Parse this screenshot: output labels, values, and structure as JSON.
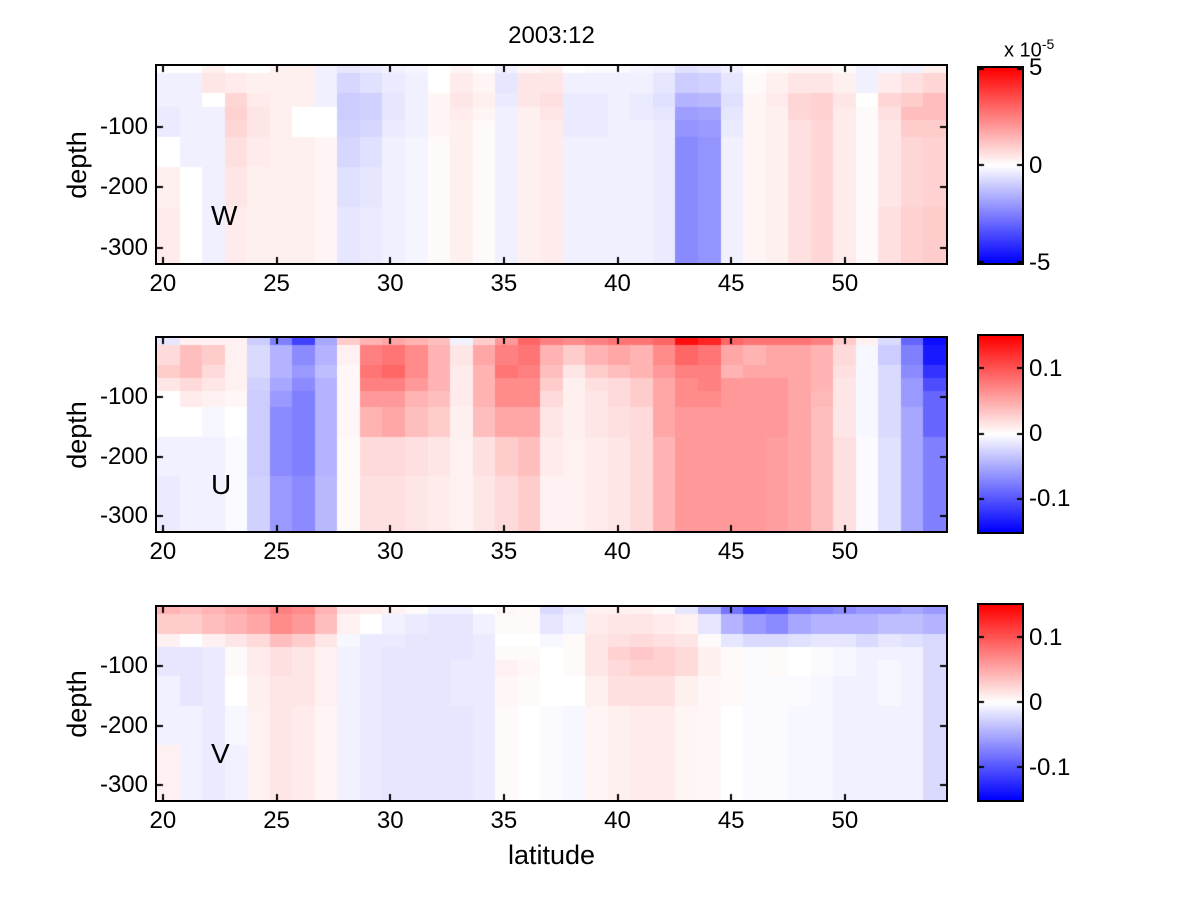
{
  "title": "2003:12",
  "xlabel": "latitude",
  "ylabel": "depth",
  "colors": {
    "positive_max": "#ff0000",
    "zero": "#ffffff",
    "negative_max": "#0000ff",
    "axis": "#000000",
    "background": "#ffffff"
  },
  "x_tick_labels": [
    "20",
    "25",
    "30",
    "35",
    "40",
    "45",
    "50"
  ],
  "x_tick_values": [
    20,
    25,
    30,
    35,
    40,
    45,
    50
  ],
  "y_tick_labels": [
    "-100",
    "-200",
    "-300"
  ],
  "y_tick_values": [
    -100,
    -200,
    -300
  ],
  "chart_data": [
    {
      "type": "heatmap",
      "panel_label": "W",
      "title": "2003:12",
      "xlabel": "",
      "ylabel": "depth",
      "x_range": [
        19.74,
        54.45
      ],
      "x_start": 20,
      "x_step": 1,
      "n_cols": 35,
      "y_edges_m": [
        0,
        -12,
        -45,
        -68,
        -89,
        -117,
        -167,
        -233,
        -325
      ],
      "depth_range": [
        0,
        -325
      ],
      "units": "1e-5 m/s",
      "cmax": 5,
      "orientation": "values[col][row], col = latitude 20..54, row = surface..deep",
      "colorbar": {
        "tick_labels": [
          "5",
          "0",
          "-5"
        ],
        "tick_values": [
          5,
          0,
          -5
        ],
        "range": [
          -5,
          5
        ],
        "exponent_label": "x 10",
        "exponent": "-5"
      },
      "values": [
        [
          0,
          -0.3,
          -0.3,
          -0.4,
          -0.4,
          0,
          0.3,
          0.4
        ],
        [
          0,
          -0.3,
          -0.3,
          -0.3,
          -0.3,
          -0.3,
          0,
          0
        ],
        [
          0.3,
          0.5,
          0,
          -0.3,
          -0.3,
          -0.3,
          -0.3,
          -0.3
        ],
        [
          0,
          0.4,
          0.8,
          0.9,
          0.8,
          0.6,
          0.5,
          0.4
        ],
        [
          0,
          0.3,
          0.4,
          0.5,
          0.5,
          0.4,
          0.3,
          0.3
        ],
        [
          0.3,
          0.3,
          0.3,
          0.3,
          0.3,
          0.3,
          0.3,
          0.3
        ],
        [
          0.3,
          0.3,
          0.3,
          0,
          0,
          0.3,
          0.3,
          0.3
        ],
        [
          -0.3,
          -0.3,
          -0.3,
          0,
          0,
          0.2,
          0.2,
          0.2
        ],
        [
          -0.5,
          -0.8,
          -1,
          -1,
          -0.9,
          -0.8,
          -0.6,
          -0.5
        ],
        [
          -0.4,
          -0.6,
          -0.9,
          -0.9,
          -0.8,
          -0.6,
          -0.5,
          -0.4
        ],
        [
          -0.3,
          -0.4,
          -0.5,
          -0.5,
          -0.4,
          -0.3,
          -0.3,
          -0.3
        ],
        [
          -0.2,
          -0.3,
          -0.3,
          -0.3,
          -0.3,
          -0.2,
          -0.2,
          -0.2
        ],
        [
          0,
          0,
          0.2,
          0.2,
          0.2,
          0.1,
          0.1,
          0.1
        ],
        [
          0.2,
          0.4,
          0.5,
          0.4,
          0.3,
          0.3,
          0.3,
          0.3
        ],
        [
          0,
          0.2,
          0.3,
          0.2,
          0.1,
          0.1,
          0.1,
          0.1
        ],
        [
          -0.3,
          -0.5,
          -0.4,
          -0.3,
          -0.3,
          -0.3,
          -0.3,
          -0.3
        ],
        [
          0.2,
          0.5,
          0.5,
          0.3,
          0.3,
          0.3,
          0.3,
          0.3
        ],
        [
          0.3,
          0.5,
          0.6,
          0.5,
          0.4,
          0.4,
          0.4,
          0.4
        ],
        [
          0,
          -0.3,
          -0.4,
          -0.4,
          -0.4,
          -0.3,
          -0.3,
          -0.3
        ],
        [
          -0.1,
          -0.3,
          -0.4,
          -0.4,
          -0.4,
          -0.3,
          -0.3,
          -0.3
        ],
        [
          -0.1,
          -0.3,
          -0.3,
          -0.3,
          -0.3,
          -0.3,
          -0.3,
          -0.3
        ],
        [
          -0.2,
          -0.3,
          -0.4,
          -0.4,
          -0.3,
          -0.3,
          -0.3,
          -0.3
        ],
        [
          -0.3,
          -0.5,
          -0.6,
          -0.5,
          -0.4,
          -0.4,
          -0.4,
          -0.4
        ],
        [
          -0.6,
          -1,
          -1.5,
          -1.9,
          -2.1,
          -2.3,
          -2.3,
          -2.3
        ],
        [
          -0.5,
          -0.9,
          -1.4,
          -1.8,
          -2,
          -2.1,
          -2.1,
          -2.1
        ],
        [
          -0.3,
          -0.5,
          -0.6,
          -0.5,
          -0.4,
          -0.3,
          -0.3,
          -0.3
        ],
        [
          0,
          0.1,
          0.2,
          0.2,
          0.2,
          0.2,
          0.2,
          0.2
        ],
        [
          0.1,
          0.3,
          0.4,
          0.3,
          0.3,
          0.3,
          0.3,
          0.3
        ],
        [
          0.2,
          0.5,
          0.8,
          0.8,
          0.6,
          0.6,
          0.6,
          0.6
        ],
        [
          0.2,
          0.5,
          0.9,
          0.9,
          0.8,
          0.8,
          0.8,
          0.8
        ],
        [
          0.1,
          0.3,
          0.5,
          0.4,
          0.4,
          0.4,
          0.4,
          0.4
        ],
        [
          -0.3,
          -0.3,
          0,
          0.1,
          0.1,
          0.1,
          0.1,
          0.1
        ],
        [
          -0.2,
          0.4,
          0.8,
          0.6,
          0.5,
          0.5,
          0.5,
          0.6
        ],
        [
          -0.3,
          0.6,
          1,
          1.3,
          1,
          0.8,
          0.8,
          0.9
        ],
        [
          0.3,
          0.8,
          1.3,
          1.3,
          1,
          0.9,
          0.9,
          1
        ]
      ]
    },
    {
      "type": "heatmap",
      "panel_label": "U",
      "xlabel": "",
      "ylabel": "depth",
      "x_range": [
        19.74,
        54.45
      ],
      "x_start": 20,
      "x_step": 1,
      "n_cols": 35,
      "y_edges_m": [
        0,
        -12,
        -45,
        -68,
        -89,
        -117,
        -167,
        -233,
        -325
      ],
      "depth_range": [
        0,
        -325
      ],
      "units": "m/s",
      "cmax": 0.15,
      "orientation": "values[col][row], col = latitude 20..54, row = surface..deep",
      "colorbar": {
        "tick_labels": [
          "0.1",
          "0",
          "-0.1"
        ],
        "tick_values": [
          0.1,
          0,
          -0.1
        ],
        "range": [
          -0.15,
          0.15
        ]
      },
      "values": [
        [
          -0.015,
          0.022,
          0.03,
          0.015,
          0,
          0,
          -0.008,
          -0.012
        ],
        [
          0.008,
          0.038,
          0.038,
          0.022,
          0.012,
          0,
          -0.008,
          -0.008
        ],
        [
          0.008,
          0.03,
          0.022,
          0.015,
          0.008,
          -0.005,
          -0.008,
          -0.008
        ],
        [
          0.008,
          0.008,
          0.008,
          0.008,
          0.005,
          0,
          -0.003,
          -0.003
        ],
        [
          -0.03,
          -0.022,
          -0.022,
          -0.027,
          -0.03,
          -0.03,
          -0.03,
          -0.027
        ],
        [
          -0.075,
          -0.045,
          -0.045,
          -0.052,
          -0.06,
          -0.068,
          -0.068,
          -0.06
        ],
        [
          -0.112,
          -0.068,
          -0.06,
          -0.068,
          -0.075,
          -0.075,
          -0.075,
          -0.068
        ],
        [
          -0.052,
          -0.045,
          -0.038,
          -0.045,
          -0.045,
          -0.045,
          -0.045,
          -0.042
        ],
        [
          0.03,
          0.008,
          0.005,
          0.005,
          0.005,
          0.005,
          0.003,
          0.003
        ],
        [
          0.045,
          0.075,
          0.082,
          0.075,
          0.06,
          0.045,
          0.022,
          0.018
        ],
        [
          0.052,
          0.082,
          0.09,
          0.075,
          0.06,
          0.052,
          0.022,
          0.018
        ],
        [
          0.045,
          0.068,
          0.068,
          0.06,
          0.045,
          0.038,
          0.018,
          0.015
        ],
        [
          0.038,
          0.045,
          0.045,
          0.045,
          0.038,
          0.03,
          0.015,
          0.012
        ],
        [
          -0.008,
          0.015,
          0.012,
          0.012,
          0.012,
          0.009,
          0.008,
          0.008
        ],
        [
          0.03,
          0.052,
          0.045,
          0.045,
          0.045,
          0.038,
          0.018,
          0.015
        ],
        [
          0.06,
          0.075,
          0.082,
          0.068,
          0.068,
          0.052,
          0.03,
          0.022
        ],
        [
          0.09,
          0.082,
          0.075,
          0.068,
          0.068,
          0.052,
          0.038,
          0.03
        ],
        [
          0.075,
          0.045,
          0.038,
          0.03,
          0.022,
          0.015,
          0.012,
          0.008
        ],
        [
          0.068,
          0.03,
          0.015,
          0.009,
          0.009,
          0.009,
          0.008,
          0.008
        ],
        [
          0.075,
          0.045,
          0.03,
          0.018,
          0.015,
          0.015,
          0.012,
          0.012
        ],
        [
          0.082,
          0.052,
          0.038,
          0.022,
          0.022,
          0.018,
          0.015,
          0.015
        ],
        [
          0.082,
          0.045,
          0.045,
          0.03,
          0.03,
          0.022,
          0.022,
          0.022
        ],
        [
          0.09,
          0.068,
          0.06,
          0.052,
          0.052,
          0.052,
          0.045,
          0.045
        ],
        [
          0.142,
          0.09,
          0.075,
          0.068,
          0.068,
          0.06,
          0.06,
          0.06
        ],
        [
          0.128,
          0.082,
          0.075,
          0.075,
          0.068,
          0.06,
          0.06,
          0.06
        ],
        [
          0.09,
          0.052,
          0.045,
          0.06,
          0.06,
          0.06,
          0.06,
          0.06
        ],
        [
          0.082,
          0.045,
          0.052,
          0.06,
          0.06,
          0.06,
          0.06,
          0.06
        ],
        [
          0.082,
          0.052,
          0.052,
          0.06,
          0.06,
          0.06,
          0.057,
          0.057
        ],
        [
          0.082,
          0.052,
          0.052,
          0.052,
          0.052,
          0.052,
          0.052,
          0.052
        ],
        [
          0.075,
          0.045,
          0.045,
          0.045,
          0.042,
          0.038,
          0.038,
          0.038
        ],
        [
          0.03,
          0.022,
          0.018,
          0.015,
          0.015,
          0.015,
          0.018,
          0.018
        ],
        [
          0.008,
          -0.005,
          -0.005,
          -0.005,
          -0.005,
          -0.005,
          -0.003,
          -0.003
        ],
        [
          -0.022,
          -0.03,
          -0.022,
          -0.022,
          -0.022,
          -0.022,
          -0.018,
          -0.018
        ],
        [
          -0.09,
          -0.075,
          -0.068,
          -0.06,
          -0.06,
          -0.052,
          -0.052,
          -0.052
        ],
        [
          -0.142,
          -0.135,
          -0.12,
          -0.105,
          -0.09,
          -0.09,
          -0.075,
          -0.075
        ]
      ]
    },
    {
      "type": "heatmap",
      "panel_label": "V",
      "xlabel": "latitude",
      "ylabel": "depth",
      "x_range": [
        19.74,
        54.45
      ],
      "x_start": 20,
      "x_step": 1,
      "n_cols": 35,
      "y_edges_m": [
        0,
        -12,
        -45,
        -68,
        -89,
        -117,
        -167,
        -233,
        -325
      ],
      "depth_range": [
        0,
        -325
      ],
      "units": "m/s",
      "cmax": 0.15,
      "orientation": "values[col][row], col = latitude 20..54, row = surface..deep",
      "colorbar": {
        "tick_labels": [
          "0.1",
          "0",
          "-0.1"
        ],
        "tick_values": [
          0.1,
          0,
          -0.1
        ],
        "range": [
          -0.15,
          0.15
        ]
      },
      "values": [
        [
          0.045,
          0.03,
          0.008,
          -0.015,
          -0.015,
          -0.008,
          -0.008,
          0.008
        ],
        [
          0.038,
          0.03,
          0,
          -0.015,
          -0.015,
          -0.015,
          -0.008,
          -0.008
        ],
        [
          0.045,
          0.038,
          0.008,
          -0.012,
          -0.012,
          -0.012,
          -0.012,
          -0.012
        ],
        [
          0.052,
          0.045,
          0.015,
          0.003,
          0.003,
          0,
          -0.005,
          -0.008
        ],
        [
          0.06,
          0.052,
          0.022,
          0.012,
          0.012,
          0.009,
          0.008,
          0.008
        ],
        [
          0.075,
          0.068,
          0.038,
          0.018,
          0.018,
          0.015,
          0.015,
          0.015
        ],
        [
          0.068,
          0.06,
          0.03,
          0.015,
          0.015,
          0.015,
          0.012,
          0.012
        ],
        [
          0.045,
          0.038,
          0.015,
          0.008,
          0.008,
          0.008,
          0.006,
          0.006
        ],
        [
          0.015,
          0.008,
          -0.005,
          -0.008,
          -0.008,
          -0.008,
          -0.008,
          -0.008
        ],
        [
          0.012,
          0,
          -0.012,
          -0.012,
          -0.012,
          -0.012,
          -0.012,
          -0.012
        ],
        [
          0.008,
          -0.008,
          -0.012,
          -0.015,
          -0.015,
          -0.015,
          -0.015,
          -0.015
        ],
        [
          0.003,
          -0.012,
          -0.015,
          -0.015,
          -0.015,
          -0.015,
          -0.015,
          -0.015
        ],
        [
          -0.008,
          -0.015,
          -0.015,
          -0.015,
          -0.015,
          -0.015,
          -0.015,
          -0.015
        ],
        [
          -0.008,
          -0.015,
          -0.015,
          -0.015,
          -0.012,
          -0.012,
          -0.015,
          -0.015
        ],
        [
          0,
          -0.008,
          -0.012,
          -0.012,
          -0.012,
          -0.012,
          -0.012,
          -0.012
        ],
        [
          0.005,
          0.003,
          0,
          0.003,
          0.008,
          0.005,
          0.003,
          0.003
        ],
        [
          0.003,
          0.003,
          0,
          0.003,
          0.005,
          0.003,
          0,
          0
        ],
        [
          -0.022,
          -0.015,
          -0.005,
          0,
          0,
          0,
          -0.003,
          -0.003
        ],
        [
          -0.012,
          -0.008,
          0.003,
          0.003,
          0.003,
          0,
          -0.005,
          -0.005
        ],
        [
          0.008,
          0.012,
          0.015,
          0.015,
          0.015,
          0.009,
          0.006,
          0.006
        ],
        [
          0.009,
          0.015,
          0.018,
          0.027,
          0.022,
          0.018,
          0.009,
          0.009
        ],
        [
          0.008,
          0.015,
          0.022,
          0.033,
          0.027,
          0.018,
          0.012,
          0.012
        ],
        [
          0.003,
          0.012,
          0.018,
          0.027,
          0.027,
          0.018,
          0.012,
          0.012
        ],
        [
          -0.015,
          0.008,
          0.015,
          0.022,
          0.022,
          0.009,
          0.006,
          0.006
        ],
        [
          -0.045,
          -0.015,
          0.003,
          0.009,
          0.009,
          0.005,
          0.005,
          0.005
        ],
        [
          -0.082,
          -0.045,
          -0.015,
          0.003,
          0.003,
          0.003,
          0,
          0
        ],
        [
          -0.112,
          -0.06,
          -0.022,
          -0.003,
          -0.003,
          -0.003,
          -0.003,
          -0.003
        ],
        [
          -0.105,
          -0.068,
          -0.022,
          0.003,
          0.003,
          -0.003,
          -0.003,
          -0.003
        ],
        [
          -0.082,
          -0.052,
          -0.018,
          0,
          0,
          -0.003,
          -0.005,
          -0.005
        ],
        [
          -0.075,
          -0.045,
          -0.015,
          -0.003,
          -0.003,
          -0.005,
          -0.005,
          -0.005
        ],
        [
          -0.068,
          -0.045,
          -0.015,
          -0.005,
          -0.005,
          -0.008,
          -0.008,
          -0.008
        ],
        [
          -0.06,
          -0.045,
          -0.022,
          -0.008,
          -0.008,
          -0.008,
          -0.008,
          -0.008
        ],
        [
          -0.06,
          -0.038,
          -0.015,
          -0.008,
          -0.005,
          -0.005,
          -0.008,
          -0.008
        ],
        [
          -0.052,
          -0.038,
          -0.018,
          -0.008,
          -0.008,
          -0.008,
          -0.008,
          -0.008
        ],
        [
          -0.06,
          -0.045,
          -0.022,
          -0.022,
          -0.022,
          -0.022,
          -0.022,
          -0.022
        ]
      ]
    }
  ]
}
